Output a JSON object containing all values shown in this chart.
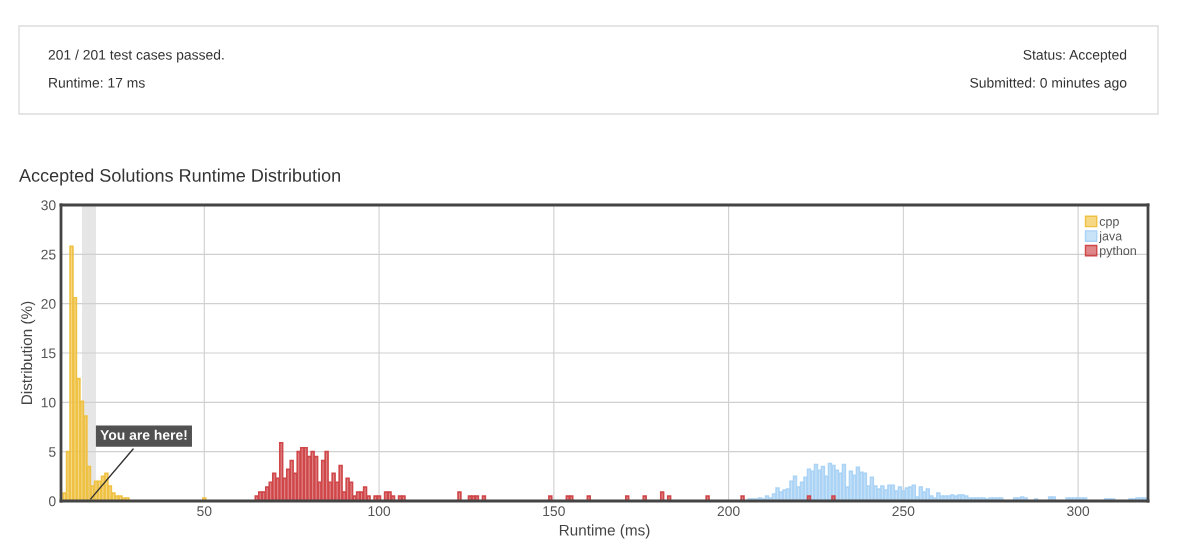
{
  "chart_data": {
    "type": "bar",
    "title": "Accepted Solutions Runtime Distribution",
    "xlabel": "Runtime (ms)",
    "ylabel": "Distribution (%)",
    "xlim": [
      9,
      320
    ],
    "ylim": [
      0,
      30
    ],
    "xticks": [
      50,
      100,
      150,
      200,
      250,
      300
    ],
    "yticks": [
      0,
      5,
      10,
      15,
      20,
      25,
      30
    ],
    "grid": true,
    "legend": "top right",
    "bands": [
      {
        "axis": "x",
        "from": 15,
        "to": 19,
        "color": "#e6e6e6"
      }
    ],
    "annotations": [
      "201 / 201 test cases passed.",
      "Runtime: 17 ms",
      "Status: Accepted",
      "Submitted: 0 minutes ago",
      {
        "text": "You are here!",
        "x": 17,
        "y": 0
      }
    ],
    "series": [
      {
        "name": "cpp",
        "color": "#efc142",
        "x": [
          10,
          11,
          12,
          13,
          14,
          15,
          16,
          17,
          18,
          19,
          20,
          21,
          22,
          23,
          24,
          25,
          26,
          27,
          28,
          50
        ],
        "values": [
          0.8,
          5,
          25.8,
          20.6,
          12.4,
          10.1,
          8.6,
          3.5,
          1.5,
          2,
          2,
          2.5,
          2.8,
          1.5,
          0.8,
          0.5,
          0.5,
          0.3,
          0.3,
          0.3
        ]
      },
      {
        "name": "java",
        "color": "#aad3f5",
        "x": [
          206,
          207,
          208,
          209,
          210,
          211,
          212,
          213,
          214,
          215,
          216,
          217,
          218,
          219,
          220,
          221,
          222,
          223,
          224,
          225,
          226,
          227,
          228,
          229,
          230,
          231,
          232,
          233,
          234,
          235,
          236,
          237,
          238,
          239,
          240,
          241,
          242,
          243,
          244,
          245,
          246,
          247,
          248,
          249,
          250,
          251,
          252,
          253,
          254,
          255,
          256,
          257,
          258,
          259,
          260,
          261,
          262,
          263,
          264,
          265,
          266,
          267,
          268,
          269,
          270,
          271,
          272,
          273,
          274,
          275,
          276,
          277,
          278,
          282,
          283,
          284,
          285,
          288,
          292,
          293,
          297,
          298,
          299,
          300,
          301,
          302,
          308,
          309,
          310,
          315,
          316,
          317,
          318,
          319
        ],
        "values": [
          0.2,
          0.2,
          0.2,
          0.3,
          0.2,
          0.5,
          0.3,
          0.7,
          1.3,
          0.9,
          1.1,
          1.2,
          2,
          2.5,
          1.4,
          1.9,
          2.4,
          3.2,
          3,
          3.7,
          3.1,
          3.5,
          2.5,
          3.8,
          3.6,
          3.1,
          2.8,
          3.7,
          1.4,
          3,
          2.6,
          3.4,
          2.9,
          2.8,
          1.5,
          2.4,
          1.5,
          1.2,
          1.5,
          1.1,
          1.6,
          1.6,
          1,
          1.4,
          1,
          1.3,
          1.4,
          1.6,
          0.4,
          1.4,
          0.9,
          1.2,
          0.5,
          0.3,
          0.8,
          0.5,
          0.5,
          0.5,
          0.6,
          0.5,
          0.6,
          0.6,
          0.5,
          0.3,
          0.3,
          0.3,
          0.3,
          0.3,
          0.2,
          0.3,
          0.3,
          0.3,
          0.3,
          0.3,
          0.3,
          0.4,
          0.3,
          0.2,
          0.4,
          0.4,
          0.3,
          0.3,
          0.3,
          0.3,
          0.3,
          0.3,
          0.2,
          0.2,
          0.2,
          0.2,
          0.2,
          0.3,
          0.3,
          0.3
        ]
      },
      {
        "name": "python",
        "color": "#d0474a",
        "x": [
          65,
          66,
          67,
          68,
          69,
          70,
          71,
          72,
          73,
          74,
          75,
          76,
          77,
          78,
          79,
          80,
          81,
          82,
          83,
          84,
          85,
          86,
          87,
          88,
          89,
          90,
          91,
          92,
          93,
          94,
          95,
          96,
          97,
          99,
          100,
          102,
          103,
          104,
          106,
          107,
          123,
          126,
          127,
          128,
          130,
          149,
          154,
          155,
          160,
          171,
          176,
          181,
          183,
          194,
          204,
          223,
          230
        ],
        "values": [
          0.5,
          0.9,
          0.9,
          1.4,
          1.9,
          2.8,
          2.3,
          5.9,
          2.3,
          3.2,
          4.1,
          2.8,
          5,
          5.4,
          5.4,
          4.5,
          5,
          4.5,
          1.9,
          4.1,
          5,
          1.9,
          2.8,
          1.9,
          3.6,
          0.9,
          2.3,
          1.9,
          0.5,
          0.9,
          0.9,
          1.4,
          0.5,
          0.5,
          0.5,
          0.9,
          0.9,
          0.5,
          0.5,
          0.5,
          0.9,
          0.5,
          0.5,
          0.5,
          0.5,
          0.5,
          0.5,
          0.5,
          0.5,
          0.5,
          0.5,
          0.9,
          0.5,
          0.5,
          0.5,
          0.5,
          0.5
        ]
      }
    ]
  }
}
